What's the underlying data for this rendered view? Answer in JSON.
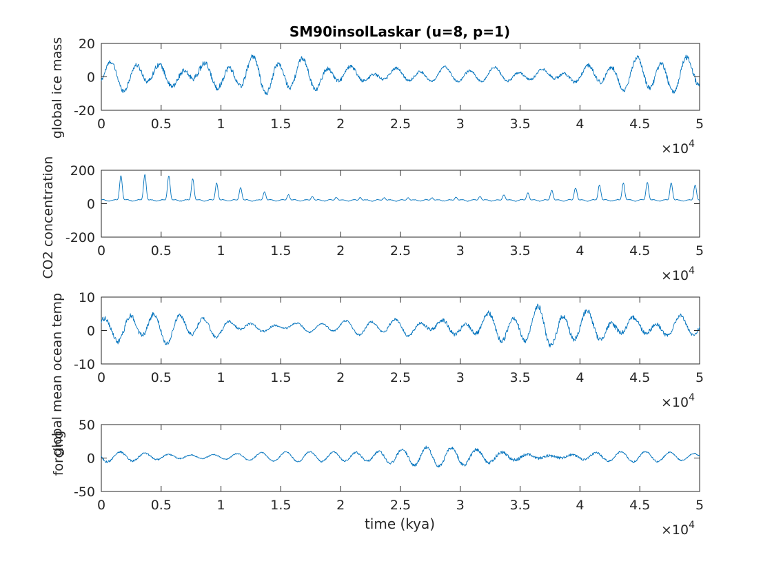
{
  "chart_data": [
    {
      "type": "line",
      "title": "SM90insolLaskar (u=8, p=1)",
      "ylabel": "global ice mass",
      "xlabel": "",
      "xlim": [
        0,
        50000
      ],
      "ylim": [
        -20,
        20
      ],
      "x_ticks": [
        0,
        5000,
        10000,
        15000,
        20000,
        25000,
        30000,
        35000,
        40000,
        45000,
        50000
      ],
      "x_tick_labels": [
        "0",
        "0.5",
        "1",
        "1.5",
        "2",
        "2.5",
        "3",
        "3.5",
        "4",
        "4.5",
        "5"
      ],
      "y_ticks": [
        -20,
        0,
        20
      ],
      "y_tick_labels": [
        "-20",
        "0",
        "20"
      ],
      "x_exponent_label": "×10",
      "x_exponent": "4",
      "series": [
        {
          "color": "#0072BD",
          "x_range": [
            0,
            50000
          ],
          "oscillation": {
            "center": 1,
            "amplitude_range": [
              5,
              13
            ],
            "periods": [
              2000,
              4100,
              2300
            ],
            "envelope_period": 41000
          }
        }
      ]
    },
    {
      "type": "line",
      "title": "",
      "ylabel": "CO2 concentration",
      "xlabel": "",
      "xlim": [
        0,
        50000
      ],
      "ylim": [
        -200,
        200
      ],
      "x_ticks": [
        0,
        5000,
        10000,
        15000,
        20000,
        25000,
        30000,
        35000,
        40000,
        45000,
        50000
      ],
      "x_tick_labels": [
        "0",
        "0.5",
        "1",
        "1.5",
        "2",
        "2.5",
        "3",
        "3.5",
        "4",
        "4.5",
        "5"
      ],
      "y_ticks": [
        -200,
        0,
        200
      ],
      "y_tick_labels": [
        "-200",
        "0",
        "200"
      ],
      "x_exponent_label": "×10",
      "x_exponent": "4",
      "series": [
        {
          "color": "#0072BD",
          "x_range": [
            0,
            50000
          ],
          "oscillation": {
            "center": 35,
            "baseline": 20,
            "spike_range": [
              40,
              180
            ],
            "periods": [
              2000,
              4100
            ],
            "envelope_period": 41000
          }
        }
      ]
    },
    {
      "type": "line",
      "title": "",
      "ylabel": "global mean ocean temp",
      "xlabel": "",
      "xlim": [
        0,
        50000
      ],
      "ylim": [
        -10,
        10
      ],
      "x_ticks": [
        0,
        5000,
        10000,
        15000,
        20000,
        25000,
        30000,
        35000,
        40000,
        45000,
        50000
      ],
      "x_tick_labels": [
        "0",
        "0.5",
        "1",
        "1.5",
        "2",
        "2.5",
        "3",
        "3.5",
        "4",
        "4.5",
        "5"
      ],
      "y_ticks": [
        -10,
        0,
        10
      ],
      "y_tick_labels": [
        "-10",
        "0",
        "10"
      ],
      "x_exponent_label": "×10",
      "x_exponent": "4",
      "series": [
        {
          "color": "#0072BD",
          "x_range": [
            0,
            50000
          ],
          "oscillation": {
            "center": 1,
            "amplitude_range": [
              2,
              6.5
            ],
            "periods": [
              2000,
              4100,
              2300
            ],
            "envelope_period": 41000
          }
        }
      ]
    },
    {
      "type": "line",
      "title": "",
      "ylabel": "forcing",
      "xlabel": "time (kya)",
      "xlim": [
        0,
        50000
      ],
      "ylim": [
        -50,
        50
      ],
      "x_ticks": [
        0,
        5000,
        10000,
        15000,
        20000,
        25000,
        30000,
        35000,
        40000,
        45000,
        50000
      ],
      "x_tick_labels": [
        "0",
        "0.5",
        "1",
        "1.5",
        "2",
        "2.5",
        "3",
        "3.5",
        "4",
        "4.5",
        "5"
      ],
      "y_ticks": [
        -50,
        0,
        50
      ],
      "y_tick_labels": [
        "-50",
        "0",
        "50"
      ],
      "x_exponent_label": "×10",
      "x_exponent": "4",
      "series": [
        {
          "color": "#0072BD",
          "x_range": [
            0,
            50000
          ],
          "oscillation": {
            "center": 2,
            "amplitude_range": [
              6,
              20
            ],
            "periods": [
              2000,
              2300,
              1900
            ],
            "envelope_period": 41000
          }
        }
      ]
    }
  ]
}
